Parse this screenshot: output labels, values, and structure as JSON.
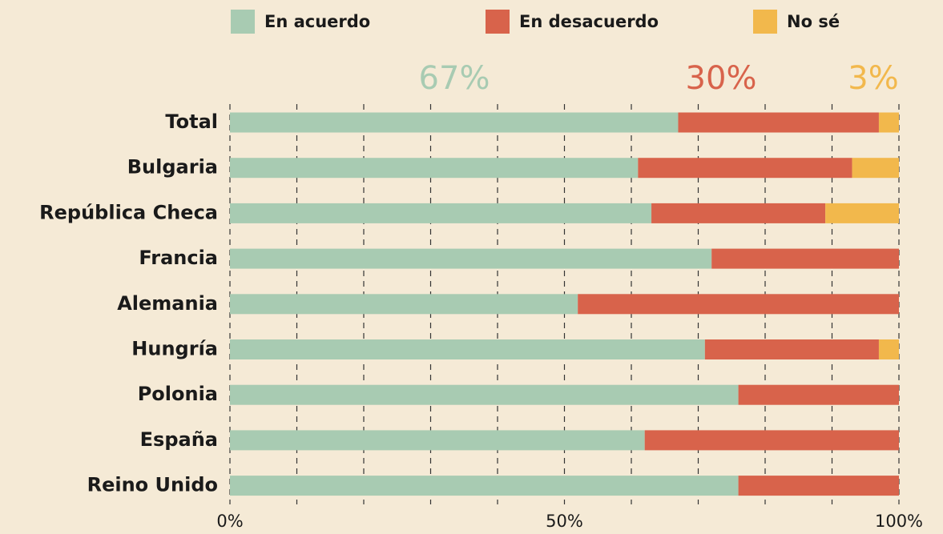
{
  "chart_data": {
    "type": "stacked_bar_horizontal",
    "categories": [
      "Total",
      "Bulgaria",
      "República Checa",
      "Francia",
      "Alemania",
      "Hungría",
      "Polonia",
      "España",
      "Reino Unido"
    ],
    "series": [
      {
        "name": "En acuerdo",
        "color": "#a8cbb2",
        "values": [
          67,
          61,
          63,
          72,
          52,
          71,
          76,
          62,
          76
        ]
      },
      {
        "name": "En desacuerdo",
        "color": "#d8634b",
        "values": [
          30,
          32,
          26,
          28,
          48,
          26,
          24,
          38,
          24
        ]
      },
      {
        "name": "No sé",
        "color": "#f2b84c",
        "values": [
          3,
          7,
          11,
          0,
          0,
          3,
          0,
          0,
          0
        ]
      }
    ],
    "annotations": [
      "67%",
      "30%",
      "3%"
    ],
    "xlim": [
      0,
      100
    ],
    "xticks": [
      {
        "value": 0,
        "label": "0%"
      },
      {
        "value": 50,
        "label": "50%"
      },
      {
        "value": 100,
        "label": "100%"
      }
    ],
    "xgrid": [
      0,
      10,
      20,
      30,
      40,
      50,
      60,
      70,
      80,
      90,
      100
    ],
    "grid": true
  }
}
